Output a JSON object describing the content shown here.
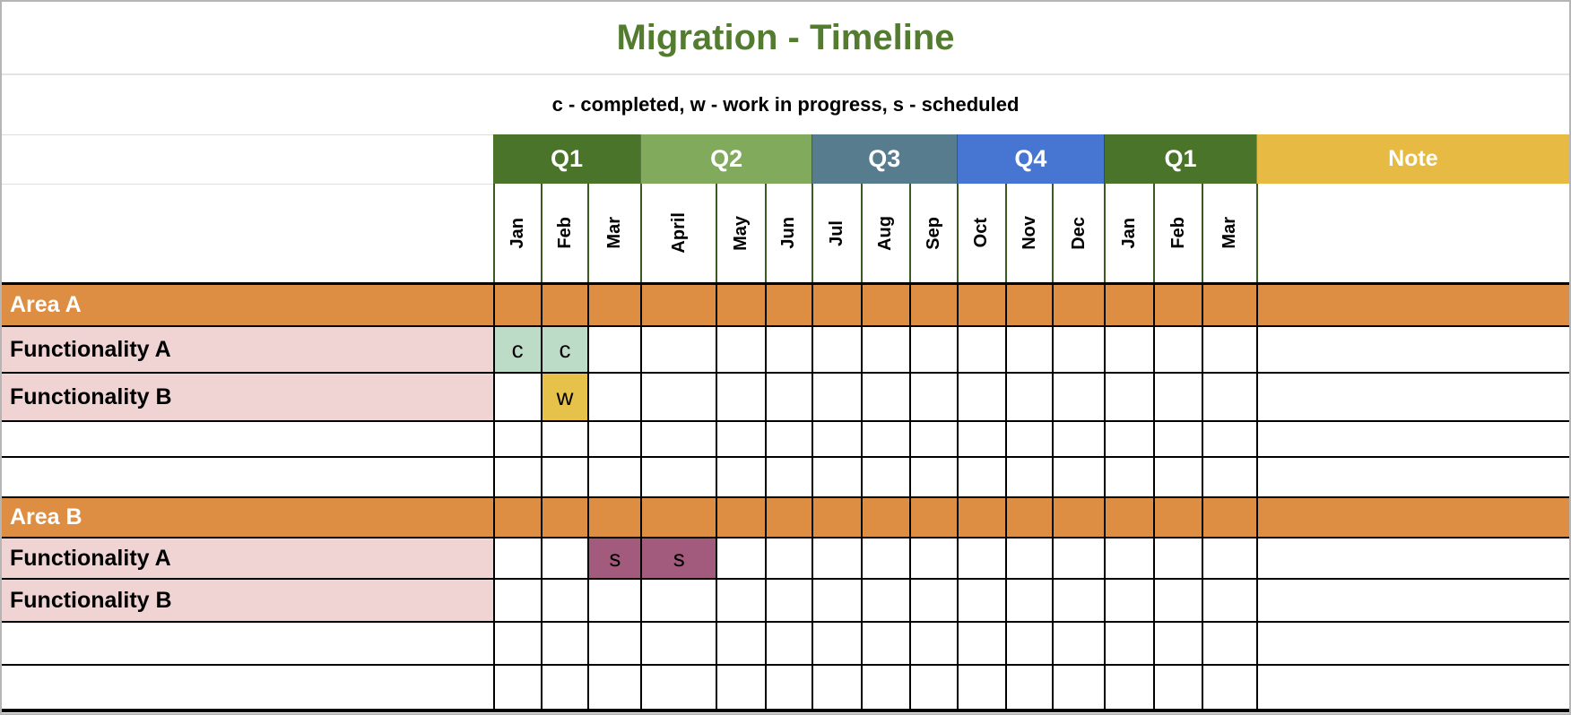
{
  "title": {
    "text": "Migration - Timeline",
    "color": "#537c30"
  },
  "legend": {
    "text": "c - completed, w - work in progress, s - scheduled"
  },
  "quarters": [
    {
      "label": "Q1",
      "span": 3,
      "color": "#4a7429"
    },
    {
      "label": "Q2",
      "span": 3,
      "color": "#82aa5c"
    },
    {
      "label": "Q3",
      "span": 3,
      "color": "#567c8d"
    },
    {
      "label": "Q4",
      "span": 3,
      "color": "#4776d2"
    },
    {
      "label": "Q1",
      "span": 3,
      "color": "#4a7429"
    }
  ],
  "note_header": {
    "label": "Note",
    "color": "#e7ba43"
  },
  "months": [
    "Jan",
    "Feb",
    "Mar",
    "April",
    "May",
    "Jun",
    "Jul",
    "Aug",
    "Sep",
    "Oct",
    "Nov",
    "Dec",
    "Jan",
    "Feb",
    "Mar"
  ],
  "colors": {
    "area_row": "#dd8e43",
    "functionality_label": "#f0d3d3",
    "status_c": "#bcdcc8",
    "status_w": "#e7c24a",
    "status_s": "#a25b7c",
    "grid_line": "#000000",
    "month_border": "#3a5a22"
  },
  "rows": [
    {
      "kind": "area",
      "label": "Area A",
      "marks": {}
    },
    {
      "kind": "functionality",
      "label": "Functionality A",
      "marks": {
        "0": "c",
        "1": "c"
      }
    },
    {
      "kind": "functionality",
      "label": "Functionality B",
      "marks": {
        "1": "w"
      }
    },
    {
      "kind": "empty",
      "label": "",
      "marks": {}
    },
    {
      "kind": "empty",
      "label": "",
      "marks": {}
    },
    {
      "kind": "area",
      "label": "Area B",
      "marks": {}
    },
    {
      "kind": "functionality",
      "label": "Functionality A",
      "marks": {
        "2": "s",
        "3": "s"
      }
    },
    {
      "kind": "functionality",
      "label": "Functionality B",
      "marks": {}
    },
    {
      "kind": "empty",
      "label": "",
      "marks": {}
    },
    {
      "kind": "empty",
      "label": "",
      "marks": {}
    }
  ],
  "chart_data": {
    "type": "table",
    "title": "Migration - Timeline",
    "legend": "c - completed, w - work in progress, s - scheduled",
    "quarter_groups": [
      "Q1",
      "Q2",
      "Q3",
      "Q4",
      "Q1"
    ],
    "columns": [
      "Jan",
      "Feb",
      "Mar",
      "April",
      "May",
      "Jun",
      "Jul",
      "Aug",
      "Sep",
      "Oct",
      "Nov",
      "Dec",
      "Jan",
      "Feb",
      "Mar",
      "Note"
    ],
    "rows": [
      {
        "label": "Area A",
        "type": "area-header",
        "entries": []
      },
      {
        "label": "Functionality A",
        "type": "item",
        "entries": [
          {
            "month": "Jan",
            "status": "c"
          },
          {
            "month": "Feb",
            "status": "c"
          }
        ]
      },
      {
        "label": "Functionality B",
        "type": "item",
        "entries": [
          {
            "month": "Feb",
            "status": "w"
          }
        ]
      },
      {
        "label": "Area B",
        "type": "area-header",
        "entries": []
      },
      {
        "label": "Functionality A",
        "type": "item",
        "entries": [
          {
            "month": "Mar",
            "status": "s"
          },
          {
            "month": "April",
            "status": "s"
          }
        ]
      },
      {
        "label": "Functionality B",
        "type": "item",
        "entries": []
      }
    ],
    "status_legend": {
      "c": "completed",
      "w": "work in progress",
      "s": "scheduled"
    }
  }
}
